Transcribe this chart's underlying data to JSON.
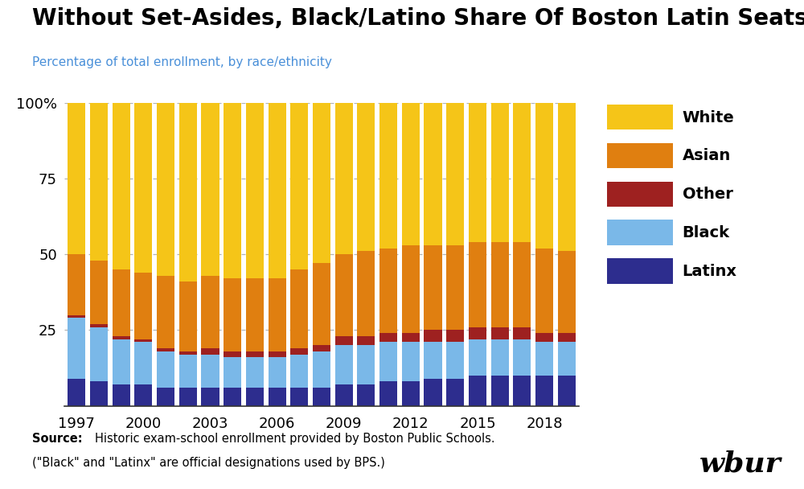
{
  "title": "Without Set-Asides, Black/Latino Share Of Boston Latin Seats Has Shrunk",
  "subtitle": "Percentage of total enrollment, by race/ethnicity",
  "source_bold": "Source:",
  "source_rest": "Historic exam-school enrollment provided by Boston Public Schools.",
  "source_line2": "(\"Black\" and \"Latinx\" are official designations used by BPS.)",
  "watermark": "wbur",
  "years": [
    1997,
    1998,
    1999,
    2000,
    2001,
    2002,
    2003,
    2004,
    2005,
    2006,
    2007,
    2008,
    2009,
    2010,
    2011,
    2012,
    2013,
    2014,
    2015,
    2016,
    2017,
    2018,
    2019
  ],
  "xtick_years": [
    1997,
    2000,
    2003,
    2006,
    2009,
    2012,
    2015,
    2018
  ],
  "categories": [
    "Latinx",
    "Black",
    "Other",
    "Asian",
    "White"
  ],
  "colors": {
    "Latinx": "#2d2d8e",
    "Black": "#7ab8e8",
    "Other": "#9e2120",
    "Asian": "#e07f10",
    "White": "#f5c518"
  },
  "data": {
    "Latinx": [
      9,
      8,
      7,
      7,
      6,
      6,
      6,
      6,
      6,
      6,
      6,
      6,
      7,
      7,
      8,
      8,
      9,
      9,
      10,
      10,
      10,
      10,
      10
    ],
    "Black": [
      20,
      18,
      15,
      14,
      12,
      11,
      11,
      10,
      10,
      10,
      11,
      12,
      13,
      13,
      13,
      13,
      12,
      12,
      12,
      12,
      12,
      11,
      11
    ],
    "Other": [
      1,
      1,
      1,
      1,
      1,
      1,
      2,
      2,
      2,
      2,
      2,
      2,
      3,
      3,
      3,
      3,
      4,
      4,
      4,
      4,
      4,
      3,
      3
    ],
    "Asian": [
      20,
      21,
      22,
      22,
      24,
      23,
      24,
      24,
      24,
      24,
      26,
      27,
      27,
      28,
      28,
      29,
      28,
      28,
      28,
      28,
      28,
      28,
      27
    ],
    "White": [
      50,
      52,
      55,
      56,
      57,
      59,
      57,
      58,
      58,
      58,
      55,
      53,
      50,
      49,
      48,
      47,
      47,
      47,
      46,
      46,
      46,
      48,
      49
    ]
  },
  "ylim": [
    0,
    100
  ],
  "yticks": [
    0,
    25,
    50,
    75,
    100
  ],
  "ytick_labels": [
    "",
    "25",
    "50",
    "75",
    "100%"
  ],
  "background_color": "#ffffff",
  "grid_color": "#aaaaaa",
  "title_fontsize": 20,
  "subtitle_fontsize": 11,
  "subtitle_color": "#4a90d9",
  "tick_label_fontsize": 13,
  "legend_fontsize": 14,
  "source_fontsize": 10.5,
  "watermark_fontsize": 26
}
